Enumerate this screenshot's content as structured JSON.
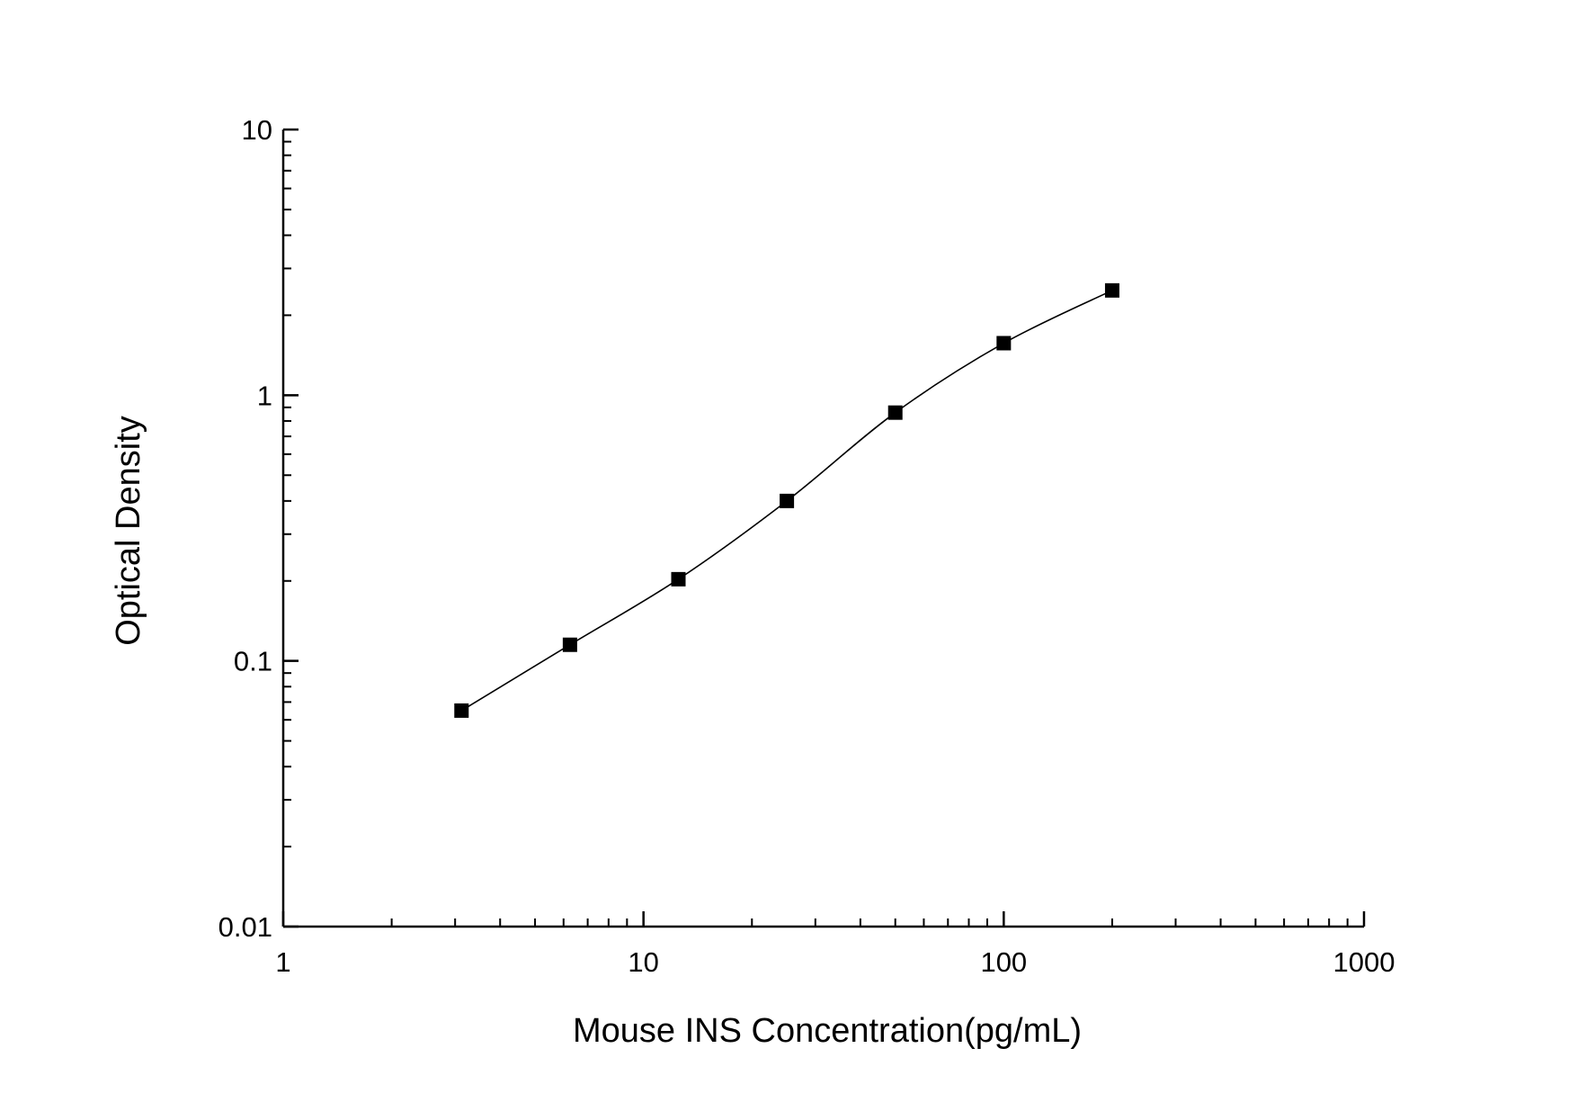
{
  "chart_data": {
    "type": "scatter",
    "title": "",
    "xlabel": "Mouse INS Concentration(pg/mL)",
    "ylabel": "Optical Density",
    "x_scale": "log",
    "y_scale": "log",
    "xlim": [
      1,
      1000
    ],
    "ylim": [
      0.01,
      10
    ],
    "x_ticks": [
      {
        "value": 1,
        "label": "1"
      },
      {
        "value": 10,
        "label": "10"
      },
      {
        "value": 100,
        "label": "100"
      },
      {
        "value": 1000,
        "label": "1000"
      }
    ],
    "y_ticks": [
      {
        "value": 0.01,
        "label": "0.01"
      },
      {
        "value": 0.1,
        "label": "0.1"
      },
      {
        "value": 1,
        "label": "1"
      },
      {
        "value": 10,
        "label": "10"
      }
    ],
    "grid": false,
    "legend": "none",
    "marker": "square",
    "marker_color": "#000000",
    "line_color": "#000000",
    "points": [
      {
        "x": 3.125,
        "y": 0.065
      },
      {
        "x": 6.25,
        "y": 0.115
      },
      {
        "x": 12.5,
        "y": 0.203
      },
      {
        "x": 25,
        "y": 0.4
      },
      {
        "x": 50,
        "y": 0.86
      },
      {
        "x": 100,
        "y": 1.57
      },
      {
        "x": 200,
        "y": 2.48
      }
    ],
    "fit_curve": "four-parameter logistic"
  }
}
